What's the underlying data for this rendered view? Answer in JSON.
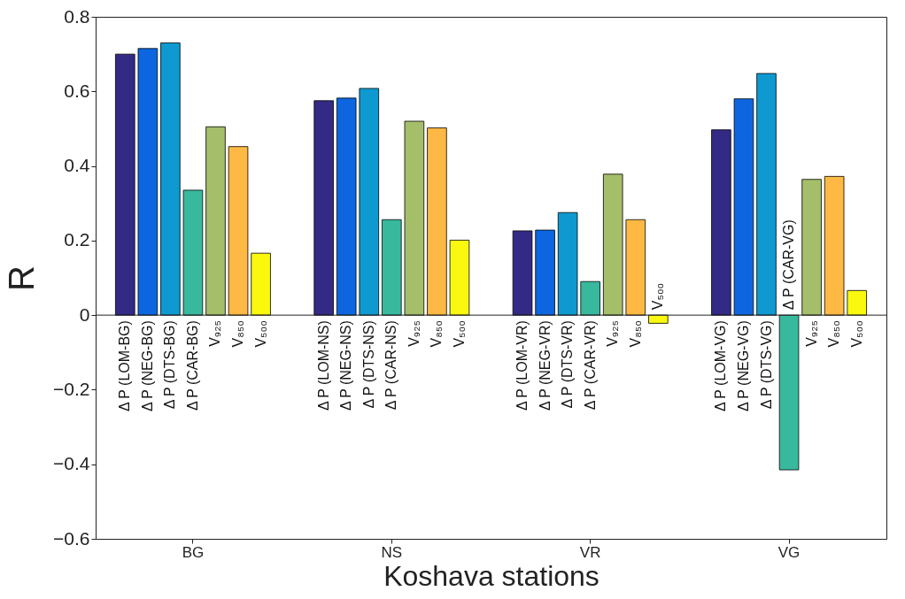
{
  "chart_data": {
    "type": "bar",
    "xlabel": "Koshava stations",
    "ylabel": "R",
    "categories": [
      "BG",
      "NS",
      "VR",
      "VG"
    ],
    "series": [
      {
        "color": "#332a85",
        "values": [
          0.7,
          0.575,
          0.226,
          0.497
        ],
        "value_labels": [
          "Δ P (LOM-BG)",
          "Δ P (LOM-NS)",
          "Δ P (LOM-VR)",
          "Δ P (LOM-VG)"
        ]
      },
      {
        "color": "#0d66e0",
        "values": [
          0.715,
          0.582,
          0.228,
          0.58
        ],
        "value_labels": [
          "Δ P (NEG-BG)",
          "Δ P (NEG-NS)",
          "Δ P (NEG-VR)",
          "Δ P (NEG-VG)"
        ]
      },
      {
        "color": "#0e9ad0",
        "values": [
          0.73,
          0.608,
          0.275,
          0.648
        ],
        "value_labels": [
          "Δ P (DTS-BG)",
          "Δ P (DTS-NS)",
          "Δ P (DTS-VR)",
          "Δ P (DTS-VG)"
        ]
      },
      {
        "color": "#38b99e",
        "values": [
          0.335,
          0.256,
          0.09,
          -0.415
        ],
        "value_labels": [
          "Δ P (CAR-BG)",
          "Δ P (CAR-NS)",
          "Δ P (CAR-VR)",
          "Δ P (CAR-VG)"
        ]
      },
      {
        "color": "#a4be6a",
        "values": [
          0.505,
          0.52,
          0.378,
          0.364
        ],
        "value_labels": [
          "V₉₂₅",
          "V₉₂₅",
          "V₉₂₅",
          "V₉₂₅"
        ]
      },
      {
        "color": "#fdb943",
        "values": [
          0.452,
          0.502,
          0.256,
          0.372
        ],
        "value_labels": [
          "V₈₅₀",
          "V₈₅₀",
          "V₈₅₀",
          "V₈₅₀"
        ]
      },
      {
        "color": "#f9f80e",
        "values": [
          0.166,
          0.201,
          -0.022,
          0.066
        ],
        "value_labels": [
          "V₅₀₀",
          "V₅₀₀",
          "V₅₀₀",
          "V₅₀₀"
        ]
      }
    ],
    "ylim": [
      -0.6,
      0.8
    ],
    "yticks": [
      -0.6,
      -0.4,
      -0.2,
      0,
      0.2,
      0.4,
      0.6,
      0.8
    ],
    "grid": false,
    "ref_lines": [
      {
        "axis": "y",
        "value": 0
      }
    ]
  }
}
